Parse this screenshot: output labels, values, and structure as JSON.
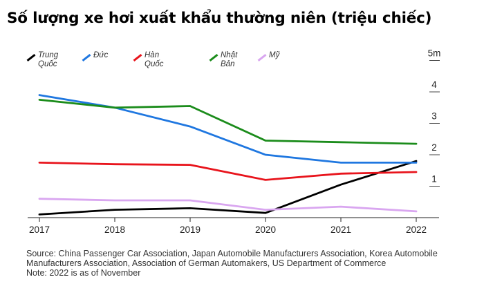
{
  "title": "Số lượng xe hơi xuất khẩu thường niên (triệu chiếc)",
  "chart_data": {
    "type": "line",
    "x": [
      "2017",
      "2018",
      "2019",
      "2020",
      "2021",
      "2022"
    ],
    "y_ticks": [
      {
        "value": 1,
        "label": "1"
      },
      {
        "value": 2,
        "label": "2"
      },
      {
        "value": 3,
        "label": "3"
      },
      {
        "value": 4,
        "label": "4"
      },
      {
        "value": 5,
        "label": "5m"
      }
    ],
    "ylim": [
      0,
      5.2
    ],
    "y_axis_side": "right",
    "legend_position": "top",
    "series": [
      {
        "name": "Trung Quốc",
        "color": "#000000",
        "values": [
          0.1,
          0.25,
          0.3,
          0.15,
          1.05,
          1.8
        ]
      },
      {
        "name": "Đức",
        "color": "#1f77e0",
        "values": [
          3.9,
          3.5,
          2.9,
          2.0,
          1.75,
          1.75
        ]
      },
      {
        "name": "Hàn Quốc",
        "color": "#e8141c",
        "values": [
          1.75,
          1.7,
          1.68,
          1.2,
          1.4,
          1.45
        ]
      },
      {
        "name": "Nhật Bản",
        "color": "#1b8c1b",
        "values": [
          3.75,
          3.5,
          3.55,
          2.45,
          2.4,
          2.35
        ]
      },
      {
        "name": "Mỹ",
        "color": "#d9a6f0",
        "values": [
          0.6,
          0.55,
          0.55,
          0.25,
          0.35,
          0.2
        ]
      }
    ]
  },
  "footnote": {
    "source": "Source: China Passenger Car Association, Japan Automobile Manufacturers Association, Korea Automobile Manufacturers Association, Association of German Automakers, US Department of Commerce",
    "note": "Note: 2022 is as of November"
  }
}
